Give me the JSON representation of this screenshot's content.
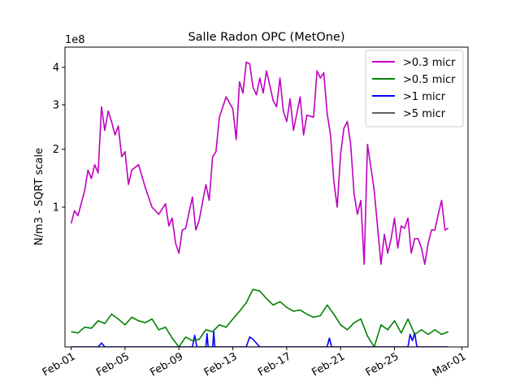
{
  "chart_data": {
    "type": "line",
    "title": "Salle Radon OPC (MetOne)",
    "xlabel": "",
    "ylabel": "N/m3 - SQRT scale",
    "y_scale": "sqrt",
    "y_multiplier": "1e8",
    "ylim": [
      0,
      4.6
    ],
    "y_ticks": [
      1,
      2,
      3,
      4
    ],
    "xlim": [
      "2024-01-31T13:00",
      "2024-03-01T11:00"
    ],
    "x_ticks": [
      {
        "date": "2024-02-01",
        "label": "Feb-01"
      },
      {
        "date": "2024-02-05",
        "label": "Feb-05"
      },
      {
        "date": "2024-02-09",
        "label": "Feb-09"
      },
      {
        "date": "2024-02-13",
        "label": "Feb-13"
      },
      {
        "date": "2024-02-17",
        "label": "Feb-17"
      },
      {
        "date": "2024-02-21",
        "label": "Feb-21"
      },
      {
        "date": "2024-02-25",
        "label": "Feb-25"
      },
      {
        "date": "2024-03-01",
        "label": "Mar-01"
      }
    ],
    "legend_position": "top-right",
    "grid": false,
    "series": [
      {
        "name": ">0.3 micr",
        "color": "#bf00bf",
        "x": [
          "2024-02-01T00:00",
          "2024-02-01T06:00",
          "2024-02-01T12:00",
          "2024-02-02T00:00",
          "2024-02-02T06:00",
          "2024-02-02T12:00",
          "2024-02-02T18:00",
          "2024-02-03T00:00",
          "2024-02-03T06:00",
          "2024-02-03T12:00",
          "2024-02-03T18:00",
          "2024-02-04T00:00",
          "2024-02-04T06:00",
          "2024-02-04T12:00",
          "2024-02-04T18:00",
          "2024-02-05T00:00",
          "2024-02-05T06:00",
          "2024-02-05T12:00",
          "2024-02-06T00:00",
          "2024-02-06T12:00",
          "2024-02-07T00:00",
          "2024-02-07T12:00",
          "2024-02-08T00:00",
          "2024-02-08T06:00",
          "2024-02-08T12:00",
          "2024-02-08T18:00",
          "2024-02-09T00:00",
          "2024-02-09T06:00",
          "2024-02-09T12:00",
          "2024-02-10T00:00",
          "2024-02-10T06:00",
          "2024-02-10T12:00",
          "2024-02-11T00:00",
          "2024-02-11T06:00",
          "2024-02-11T12:00",
          "2024-02-11T18:00",
          "2024-02-12T00:00",
          "2024-02-12T12:00",
          "2024-02-13T00:00",
          "2024-02-13T06:00",
          "2024-02-13T12:00",
          "2024-02-13T18:00",
          "2024-02-14T00:00",
          "2024-02-14T06:00",
          "2024-02-14T12:00",
          "2024-02-14T18:00",
          "2024-02-15T00:00",
          "2024-02-15T06:00",
          "2024-02-15T12:00",
          "2024-02-16T00:00",
          "2024-02-16T06:00",
          "2024-02-16T12:00",
          "2024-02-16T18:00",
          "2024-02-17T00:00",
          "2024-02-17T06:00",
          "2024-02-17T12:00",
          "2024-02-18T00:00",
          "2024-02-18T06:00",
          "2024-02-18T12:00",
          "2024-02-19T00:00",
          "2024-02-19T06:00",
          "2024-02-19T12:00",
          "2024-02-19T18:00",
          "2024-02-20T00:00",
          "2024-02-20T06:00",
          "2024-02-20T12:00",
          "2024-02-20T18:00",
          "2024-02-21T00:00",
          "2024-02-21T06:00",
          "2024-02-21T12:00",
          "2024-02-21T18:00",
          "2024-02-22T00:00",
          "2024-02-22T06:00",
          "2024-02-22T12:00",
          "2024-02-22T18:00",
          "2024-02-23T00:00",
          "2024-02-23T06:00",
          "2024-02-23T12:00",
          "2024-02-24T00:00",
          "2024-02-24T06:00",
          "2024-02-24T12:00",
          "2024-02-24T18:00",
          "2024-02-25T00:00",
          "2024-02-25T06:00",
          "2024-02-25T12:00",
          "2024-02-25T18:00",
          "2024-02-26T00:00",
          "2024-02-26T06:00",
          "2024-02-26T12:00",
          "2024-02-26T18:00",
          "2024-02-27T00:00",
          "2024-02-27T06:00",
          "2024-02-27T12:00",
          "2024-02-27T18:00",
          "2024-02-28T00:00",
          "2024-02-28T06:00",
          "2024-02-28T12:00",
          "2024-02-28T18:00",
          "2024-02-29T00:00"
        ],
        "values": [
          0.78,
          0.95,
          0.88,
          1.25,
          1.6,
          1.45,
          1.7,
          1.55,
          2.95,
          2.4,
          2.85,
          2.6,
          2.3,
          2.5,
          1.85,
          1.95,
          1.35,
          1.6,
          1.7,
          1.3,
          1.0,
          0.9,
          1.05,
          0.75,
          0.85,
          0.55,
          0.45,
          0.7,
          0.72,
          1.15,
          0.7,
          0.82,
          1.35,
          1.1,
          1.85,
          1.95,
          2.7,
          3.2,
          2.9,
          2.2,
          3.6,
          3.3,
          4.15,
          4.1,
          3.45,
          3.25,
          3.7,
          3.3,
          3.9,
          3.1,
          2.95,
          3.7,
          2.85,
          2.6,
          3.15,
          2.4,
          3.2,
          2.3,
          2.75,
          2.7,
          3.9,
          3.7,
          3.85,
          2.8,
          2.3,
          1.4,
          1.0,
          1.9,
          2.45,
          2.6,
          2.1,
          1.2,
          0.9,
          1.1,
          0.35,
          2.1,
          1.65,
          1.25,
          0.35,
          0.65,
          0.45,
          0.6,
          0.85,
          0.5,
          0.75,
          0.72,
          0.85,
          0.45,
          0.6,
          0.6,
          0.5,
          0.35,
          0.55,
          0.7,
          0.7,
          0.9,
          1.1,
          0.7,
          0.72
        ]
      },
      {
        "name": ">0.5 micr",
        "color": "#008000",
        "x": [
          "2024-02-01T00:00",
          "2024-02-01T12:00",
          "2024-02-02T00:00",
          "2024-02-02T12:00",
          "2024-02-03T00:00",
          "2024-02-03T12:00",
          "2024-02-04T00:00",
          "2024-02-04T12:00",
          "2024-02-05T00:00",
          "2024-02-05T12:00",
          "2024-02-06T00:00",
          "2024-02-06T12:00",
          "2024-02-07T00:00",
          "2024-02-07T12:00",
          "2024-02-08T00:00",
          "2024-02-08T12:00",
          "2024-02-09T00:00",
          "2024-02-09T12:00",
          "2024-02-10T00:00",
          "2024-02-10T12:00",
          "2024-02-11T00:00",
          "2024-02-11T12:00",
          "2024-02-12T00:00",
          "2024-02-12T12:00",
          "2024-02-13T00:00",
          "2024-02-13T12:00",
          "2024-02-14T00:00",
          "2024-02-14T12:00",
          "2024-02-15T00:00",
          "2024-02-15T12:00",
          "2024-02-16T00:00",
          "2024-02-16T12:00",
          "2024-02-17T00:00",
          "2024-02-17T12:00",
          "2024-02-18T00:00",
          "2024-02-18T12:00",
          "2024-02-19T00:00",
          "2024-02-19T12:00",
          "2024-02-20T00:00",
          "2024-02-20T12:00",
          "2024-02-21T00:00",
          "2024-02-21T12:00",
          "2024-02-22T00:00",
          "2024-02-22T12:00",
          "2024-02-23T00:00",
          "2024-02-23T12:00",
          "2024-02-24T00:00",
          "2024-02-24T12:00",
          "2024-02-25T00:00",
          "2024-02-25T12:00",
          "2024-02-26T00:00",
          "2024-02-26T12:00",
          "2024-02-27T00:00",
          "2024-02-27T12:00",
          "2024-02-28T00:00",
          "2024-02-28T12:00",
          "2024-02-29T00:00"
        ],
        "values": [
          0.012,
          0.01,
          0.02,
          0.018,
          0.035,
          0.028,
          0.055,
          0.04,
          0.025,
          0.045,
          0.035,
          0.03,
          0.04,
          0.015,
          0.02,
          0.004,
          0.0,
          0.005,
          0.002,
          0.003,
          0.015,
          0.012,
          0.025,
          0.02,
          0.04,
          0.065,
          0.1,
          0.17,
          0.16,
          0.12,
          0.09,
          0.105,
          0.08,
          0.065,
          0.07,
          0.055,
          0.045,
          0.05,
          0.09,
          0.055,
          0.025,
          0.015,
          0.03,
          0.04,
          0.006,
          0.0,
          0.025,
          0.015,
          0.035,
          0.01,
          0.04,
          0.008,
          0.015,
          0.008,
          0.015,
          0.008,
          0.012
        ]
      },
      {
        "name": ">1 micr",
        "color": "#0000ff",
        "x": [
          "2024-02-01T00:00",
          "2024-02-03T00:00",
          "2024-02-03T06:00",
          "2024-02-03T12:00",
          "2024-02-09T00:00",
          "2024-02-10T00:00",
          "2024-02-10T04:00",
          "2024-02-10T08:00",
          "2024-02-11T00:00",
          "2024-02-11T02:00",
          "2024-02-11T04:00",
          "2024-02-11T12:00",
          "2024-02-11T14:00",
          "2024-02-11T16:00",
          "2024-02-14T00:00",
          "2024-02-14T06:00",
          "2024-02-14T12:00",
          "2024-02-15T00:00",
          "2024-02-15T06:00",
          "2024-02-20T00:00",
          "2024-02-20T04:00",
          "2024-02-20T08:00",
          "2024-02-26T00:00",
          "2024-02-26T04:00",
          "2024-02-26T08:00",
          "2024-02-26T12:00",
          "2024-02-26T16:00",
          "2024-02-29T00:00"
        ],
        "values": [
          0.0,
          0.0,
          0.0008,
          0.0,
          0.0,
          0.0,
          0.007,
          0.0,
          0.0,
          0.009,
          0.0,
          0.0,
          0.012,
          0.0,
          0.0,
          0.005,
          0.003,
          0.0,
          0.0,
          0.0,
          0.004,
          0.0,
          0.0,
          0.008,
          0.002,
          0.01,
          0.0,
          0.0
        ]
      },
      {
        "name": ">5 micr",
        "color": "#606060",
        "x": [
          "2024-02-01T00:00",
          "2024-02-29T00:00"
        ],
        "values": [
          0.0,
          0.0
        ]
      }
    ]
  }
}
